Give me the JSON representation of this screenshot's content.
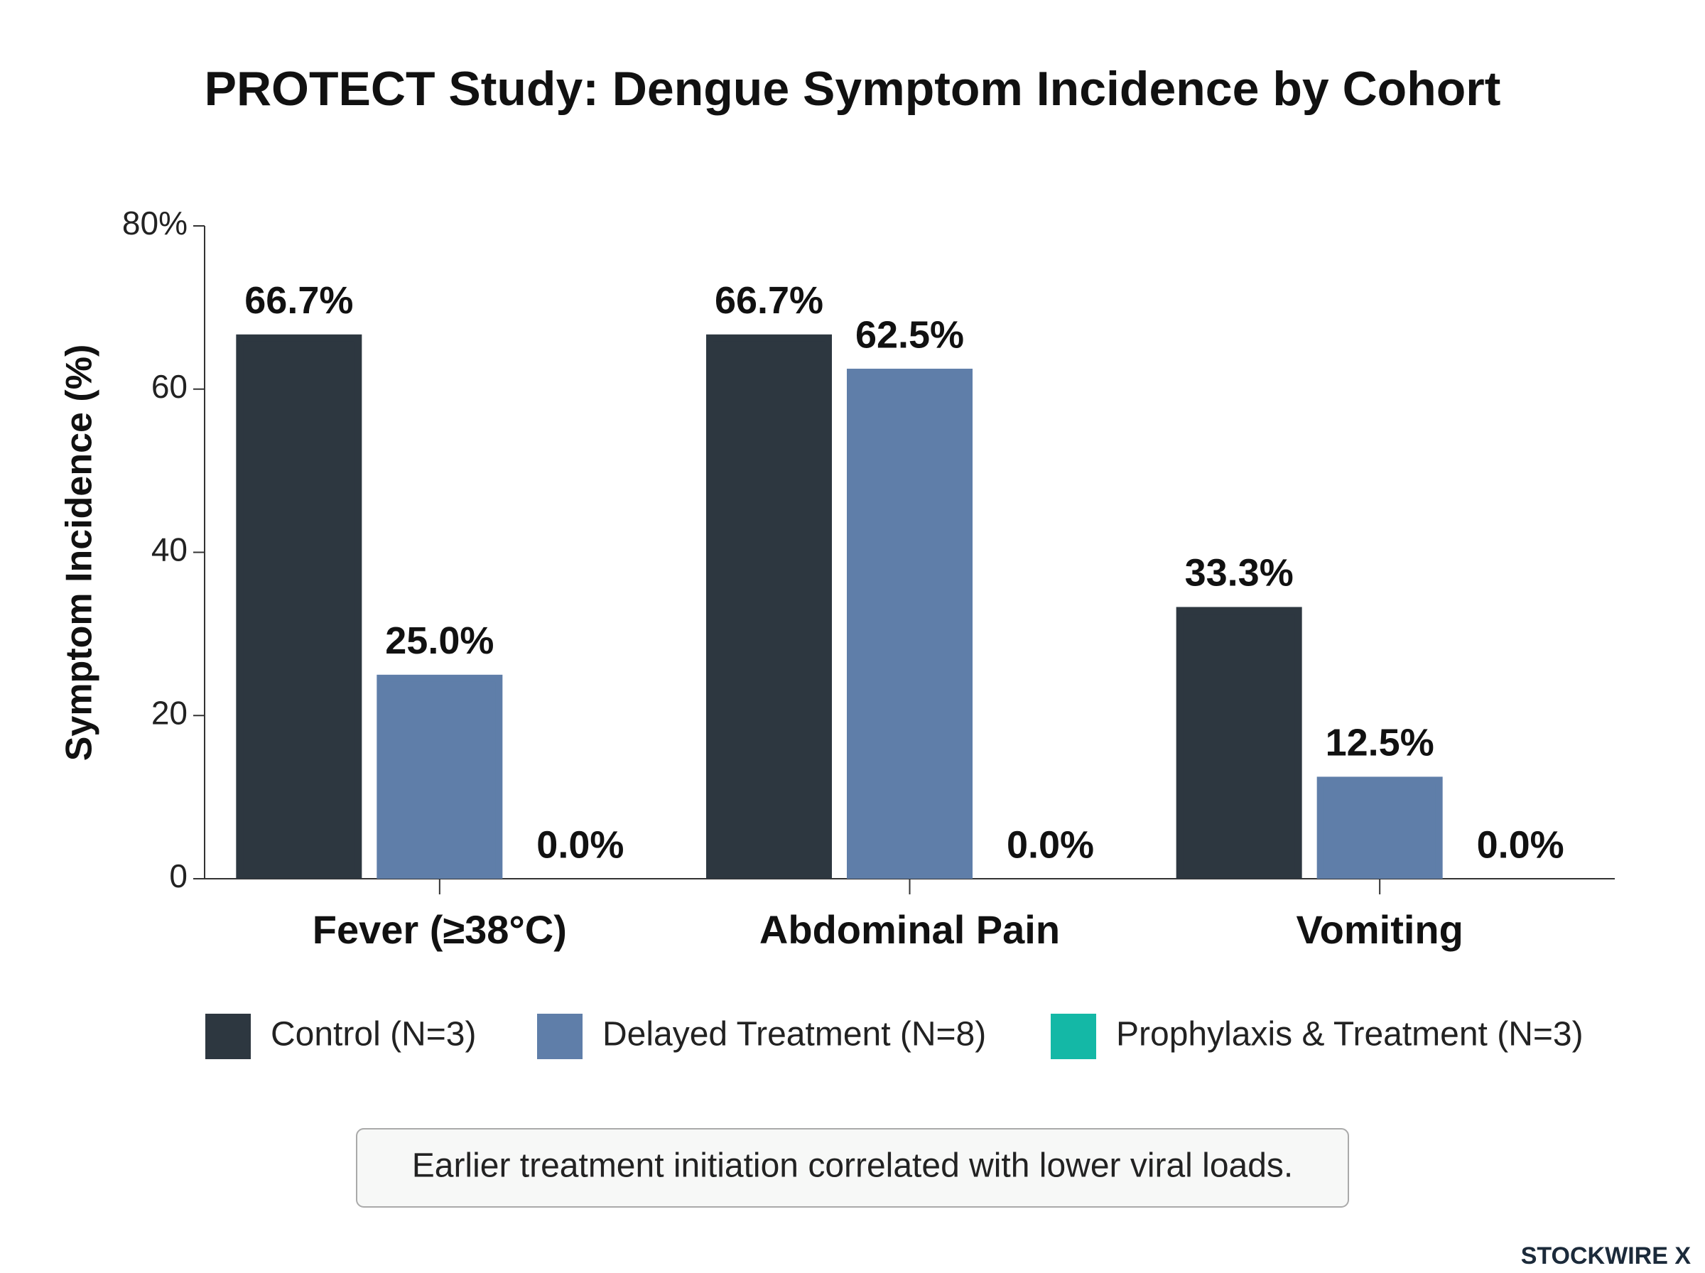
{
  "chart_data": {
    "type": "bar",
    "title": "PROTECT Study: Dengue Symptom Incidence by Cohort",
    "y_label": "Symptom Incidence (%)",
    "categories": [
      "Fever (≥38°C)",
      "Abdominal Pain",
      "Vomiting"
    ],
    "series": [
      {
        "name": "Control (N=3)",
        "color": "#2d3740",
        "values": [
          66.7,
          66.7,
          33.3
        ],
        "value_labels": [
          "66.7%",
          "66.7%",
          "33.3%"
        ]
      },
      {
        "name": "Delayed Treatment (N=8)",
        "color": "#5f7ea9",
        "values": [
          25.0,
          62.5,
          12.5
        ],
        "value_labels": [
          "25.0%",
          "62.5%",
          "12.5%"
        ]
      },
      {
        "name": "Prophylaxis & Treatment (N=3)",
        "color": "#14b8a6",
        "values": [
          0.0,
          0.0,
          0.0
        ],
        "value_labels": [
          "0.0%",
          "0.0%",
          "0.0%"
        ]
      }
    ],
    "ylim": [
      0,
      80
    ],
    "yticks": [
      0,
      20,
      40,
      60,
      {
        "value": 80,
        "label": "80%"
      }
    ],
    "grid": false,
    "legend": "bottom",
    "annotation": "Earlier treatment initiation correlated with lower viral loads.",
    "watermark": "STOCKWIRE X"
  }
}
